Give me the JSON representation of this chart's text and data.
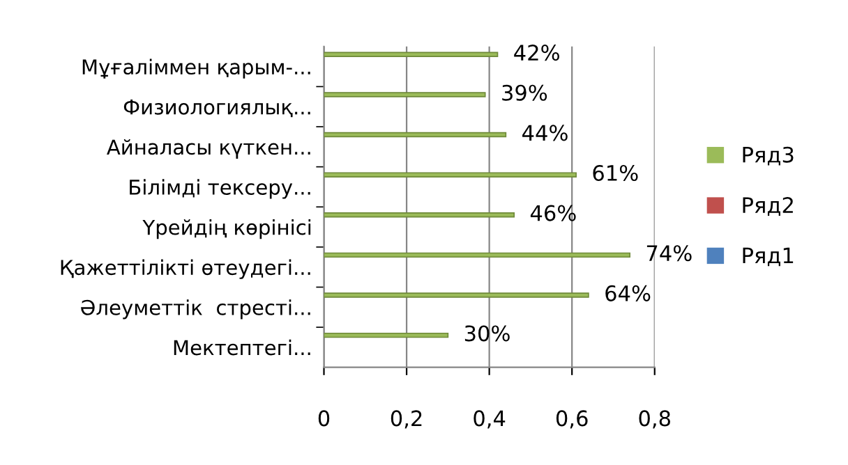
{
  "chart_data": {
    "type": "bar",
    "orientation": "horizontal",
    "categories": [
      "Мұғаліммен қарым-...",
      "Физиологиялық...",
      "Айналасы күткен...",
      "Білімді тексеру...",
      "Үрейдің көрінісі",
      "Қажеттілікті өтеудегі...",
      "Әлеуметтік  стресті...",
      "Мектептегі..."
    ],
    "series": [
      {
        "name": "Ряд1",
        "color": "#4f81bd",
        "values": [
          null,
          null,
          null,
          null,
          null,
          null,
          null,
          null
        ]
      },
      {
        "name": "Ряд2",
        "color": "#c0504d",
        "values": [
          null,
          null,
          null,
          null,
          null,
          null,
          null,
          null
        ]
      },
      {
        "name": "Ряд3",
        "color": "#9bbb59",
        "values": [
          0.42,
          0.39,
          0.44,
          0.61,
          0.46,
          0.74,
          0.64,
          0.3
        ],
        "value_labels": [
          "42%",
          "39%",
          "44%",
          "61%",
          "46%",
          "74%",
          "64%",
          "30%"
        ]
      }
    ],
    "xlim": [
      0,
      0.8
    ],
    "xticks": [
      0,
      {
        "value": 0.2,
        "label": "0,2"
      },
      {
        "value": 0.4,
        "label": "0,4"
      },
      {
        "value": 0.6,
        "label": "0,6"
      },
      {
        "value": 0.8,
        "label": "0,8"
      }
    ],
    "grid": "x",
    "legend": "right"
  }
}
